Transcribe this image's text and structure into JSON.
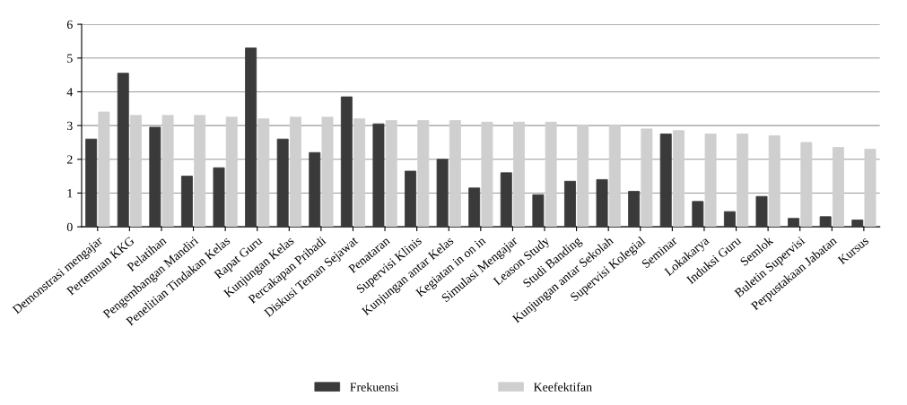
{
  "chart_data": {
    "type": "bar",
    "categories": [
      "Demonstrasi mengajar",
      "Pertemuan KKG",
      "Pelatihan",
      "Pengembangan Mandiri",
      "Penelitian Tindakan Kelas",
      "Rapat Guru",
      "Kunjungan Kelas",
      "Percakapan Pribadi",
      "Diskusi Teman Sejawat",
      "Penataran",
      "Supervisi Klinis",
      "Kunjungan antar Kelas",
      "Kegiatan in on in",
      "Simulasi Mengajar",
      "Leason Study",
      "Studi Banding",
      "Kunjungan antar Sekolah",
      "Supervisi Kolegial",
      "Seminar",
      "Lokakarya",
      "Induksi Guru",
      "Semlok",
      "Buletin Supervisi",
      "Perpustakaan Jabatan",
      "Kursus"
    ],
    "series": [
      {
        "name": "Frekuensi",
        "color": "#3a3a3a",
        "values": [
          2.6,
          4.55,
          2.95,
          1.5,
          1.75,
          5.3,
          2.6,
          2.2,
          3.85,
          3.05,
          1.65,
          2.0,
          1.15,
          1.6,
          0.95,
          1.35,
          1.4,
          1.05,
          2.75,
          0.75,
          0.45,
          0.9,
          0.25,
          0.3,
          0.2
        ]
      },
      {
        "name": "Keefektifan",
        "color": "#cfcfcf",
        "values": [
          3.4,
          3.3,
          3.3,
          3.3,
          3.25,
          3.2,
          3.25,
          3.25,
          3.2,
          3.15,
          3.15,
          3.15,
          3.1,
          3.1,
          3.1,
          3.0,
          3.0,
          2.9,
          2.85,
          2.75,
          2.75,
          2.7,
          2.5,
          2.35,
          2.3
        ]
      }
    ],
    "ylim": [
      0,
      6
    ],
    "yticks": [
      0,
      1,
      2,
      3,
      4,
      5,
      6
    ],
    "grid": "y",
    "legend": "bottom"
  }
}
